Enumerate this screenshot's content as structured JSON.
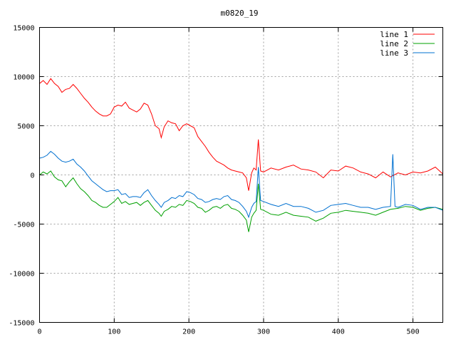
{
  "chart_data": {
    "type": "line",
    "title": "m0820_19",
    "xlabel": "",
    "ylabel": "",
    "xlim": [
      0,
      540
    ],
    "ylim": [
      -15000,
      15000
    ],
    "x_ticks": [
      0,
      100,
      200,
      300,
      400,
      500
    ],
    "y_ticks": [
      -15000,
      -10000,
      -5000,
      0,
      5000,
      10000,
      15000
    ],
    "grid": true,
    "legend_position": "top-right",
    "series": [
      {
        "name": "line 1",
        "color": "#ff0000",
        "points": [
          [
            0,
            9300
          ],
          [
            5,
            9600
          ],
          [
            10,
            9200
          ],
          [
            15,
            9800
          ],
          [
            20,
            9300
          ],
          [
            25,
            9000
          ],
          [
            30,
            8400
          ],
          [
            35,
            8700
          ],
          [
            40,
            8800
          ],
          [
            45,
            9200
          ],
          [
            50,
            8800
          ],
          [
            55,
            8300
          ],
          [
            60,
            7800
          ],
          [
            65,
            7400
          ],
          [
            70,
            6900
          ],
          [
            75,
            6500
          ],
          [
            80,
            6200
          ],
          [
            85,
            6000
          ],
          [
            90,
            6000
          ],
          [
            95,
            6200
          ],
          [
            100,
            6900
          ],
          [
            105,
            7100
          ],
          [
            110,
            7000
          ],
          [
            115,
            7400
          ],
          [
            120,
            6800
          ],
          [
            125,
            6600
          ],
          [
            130,
            6400
          ],
          [
            135,
            6700
          ],
          [
            140,
            7300
          ],
          [
            145,
            7100
          ],
          [
            150,
            6200
          ],
          [
            155,
            5000
          ],
          [
            160,
            4700
          ],
          [
            163,
            3800
          ],
          [
            167,
            4900
          ],
          [
            172,
            5500
          ],
          [
            177,
            5300
          ],
          [
            182,
            5200
          ],
          [
            187,
            4500
          ],
          [
            192,
            5000
          ],
          [
            197,
            5200
          ],
          [
            202,
            5000
          ],
          [
            207,
            4800
          ],
          [
            212,
            3900
          ],
          [
            217,
            3400
          ],
          [
            222,
            2900
          ],
          [
            227,
            2300
          ],
          [
            232,
            1800
          ],
          [
            237,
            1400
          ],
          [
            242,
            1200
          ],
          [
            247,
            1000
          ],
          [
            252,
            700
          ],
          [
            257,
            500
          ],
          [
            262,
            400
          ],
          [
            267,
            300
          ],
          [
            272,
            200
          ],
          [
            277,
            -300
          ],
          [
            280,
            -1600
          ],
          [
            284,
            200
          ],
          [
            287,
            700
          ],
          [
            290,
            500
          ],
          [
            293,
            3600
          ],
          [
            296,
            400
          ],
          [
            300,
            300
          ],
          [
            310,
            700
          ],
          [
            320,
            500
          ],
          [
            330,
            800
          ],
          [
            340,
            1000
          ],
          [
            350,
            600
          ],
          [
            360,
            500
          ],
          [
            370,
            300
          ],
          [
            380,
            -300
          ],
          [
            390,
            500
          ],
          [
            400,
            400
          ],
          [
            410,
            900
          ],
          [
            420,
            700
          ],
          [
            430,
            300
          ],
          [
            440,
            100
          ],
          [
            450,
            -300
          ],
          [
            460,
            300
          ],
          [
            470,
            -200
          ],
          [
            480,
            200
          ],
          [
            490,
            0
          ],
          [
            500,
            300
          ],
          [
            510,
            200
          ],
          [
            520,
            400
          ],
          [
            530,
            800
          ],
          [
            540,
            100
          ]
        ]
      },
      {
        "name": "line 2",
        "color": "#00a000",
        "points": [
          [
            0,
            0
          ],
          [
            5,
            300
          ],
          [
            10,
            100
          ],
          [
            15,
            400
          ],
          [
            20,
            -200
          ],
          [
            25,
            -500
          ],
          [
            30,
            -600
          ],
          [
            35,
            -1200
          ],
          [
            40,
            -700
          ],
          [
            45,
            -300
          ],
          [
            50,
            -900
          ],
          [
            55,
            -1400
          ],
          [
            60,
            -1700
          ],
          [
            65,
            -2100
          ],
          [
            70,
            -2600
          ],
          [
            75,
            -2800
          ],
          [
            80,
            -3100
          ],
          [
            85,
            -3300
          ],
          [
            90,
            -3300
          ],
          [
            95,
            -3000
          ],
          [
            100,
            -2700
          ],
          [
            105,
            -2300
          ],
          [
            110,
            -2900
          ],
          [
            115,
            -2700
          ],
          [
            120,
            -3000
          ],
          [
            125,
            -2900
          ],
          [
            130,
            -2800
          ],
          [
            135,
            -3100
          ],
          [
            140,
            -2800
          ],
          [
            145,
            -2600
          ],
          [
            150,
            -3100
          ],
          [
            155,
            -3600
          ],
          [
            160,
            -3900
          ],
          [
            163,
            -4200
          ],
          [
            167,
            -3700
          ],
          [
            172,
            -3500
          ],
          [
            177,
            -3200
          ],
          [
            182,
            -3300
          ],
          [
            187,
            -3000
          ],
          [
            192,
            -3100
          ],
          [
            197,
            -2600
          ],
          [
            202,
            -2700
          ],
          [
            207,
            -2900
          ],
          [
            212,
            -3300
          ],
          [
            217,
            -3400
          ],
          [
            222,
            -3800
          ],
          [
            227,
            -3600
          ],
          [
            232,
            -3300
          ],
          [
            237,
            -3200
          ],
          [
            242,
            -3400
          ],
          [
            247,
            -3100
          ],
          [
            252,
            -3000
          ],
          [
            257,
            -3400
          ],
          [
            262,
            -3500
          ],
          [
            267,
            -3700
          ],
          [
            272,
            -4100
          ],
          [
            277,
            -4600
          ],
          [
            280,
            -5800
          ],
          [
            284,
            -4300
          ],
          [
            287,
            -3900
          ],
          [
            290,
            -3600
          ],
          [
            293,
            -900
          ],
          [
            296,
            -3500
          ],
          [
            300,
            -3600
          ],
          [
            310,
            -4000
          ],
          [
            320,
            -4100
          ],
          [
            330,
            -3800
          ],
          [
            340,
            -4100
          ],
          [
            350,
            -4200
          ],
          [
            360,
            -4300
          ],
          [
            370,
            -4700
          ],
          [
            380,
            -4400
          ],
          [
            390,
            -3900
          ],
          [
            400,
            -3800
          ],
          [
            410,
            -3600
          ],
          [
            420,
            -3700
          ],
          [
            430,
            -3800
          ],
          [
            440,
            -3900
          ],
          [
            450,
            -4100
          ],
          [
            460,
            -3800
          ],
          [
            470,
            -3500
          ],
          [
            480,
            -3400
          ],
          [
            490,
            -3200
          ],
          [
            500,
            -3300
          ],
          [
            510,
            -3600
          ],
          [
            520,
            -3400
          ],
          [
            530,
            -3300
          ],
          [
            540,
            -3500
          ]
        ]
      },
      {
        "name": "line 3",
        "color": "#0070d0",
        "points": [
          [
            0,
            1700
          ],
          [
            5,
            1800
          ],
          [
            10,
            2000
          ],
          [
            15,
            2400
          ],
          [
            20,
            2100
          ],
          [
            25,
            1700
          ],
          [
            30,
            1400
          ],
          [
            35,
            1300
          ],
          [
            40,
            1400
          ],
          [
            45,
            1600
          ],
          [
            50,
            1100
          ],
          [
            55,
            800
          ],
          [
            60,
            400
          ],
          [
            65,
            -100
          ],
          [
            70,
            -600
          ],
          [
            75,
            -900
          ],
          [
            80,
            -1200
          ],
          [
            85,
            -1500
          ],
          [
            90,
            -1700
          ],
          [
            95,
            -1600
          ],
          [
            100,
            -1600
          ],
          [
            105,
            -1500
          ],
          [
            110,
            -2000
          ],
          [
            115,
            -1900
          ],
          [
            120,
            -2300
          ],
          [
            125,
            -2200
          ],
          [
            130,
            -2200
          ],
          [
            135,
            -2300
          ],
          [
            140,
            -1800
          ],
          [
            145,
            -1500
          ],
          [
            150,
            -2100
          ],
          [
            155,
            -2600
          ],
          [
            160,
            -3000
          ],
          [
            163,
            -3300
          ],
          [
            167,
            -2800
          ],
          [
            172,
            -2600
          ],
          [
            177,
            -2300
          ],
          [
            182,
            -2400
          ],
          [
            187,
            -2100
          ],
          [
            192,
            -2200
          ],
          [
            197,
            -1700
          ],
          [
            202,
            -1800
          ],
          [
            207,
            -2000
          ],
          [
            212,
            -2400
          ],
          [
            217,
            -2500
          ],
          [
            222,
            -2800
          ],
          [
            227,
            -2700
          ],
          [
            232,
            -2500
          ],
          [
            237,
            -2400
          ],
          [
            242,
            -2500
          ],
          [
            247,
            -2200
          ],
          [
            252,
            -2100
          ],
          [
            257,
            -2500
          ],
          [
            262,
            -2600
          ],
          [
            267,
            -2800
          ],
          [
            272,
            -3200
          ],
          [
            277,
            -3700
          ],
          [
            280,
            -4300
          ],
          [
            284,
            -3300
          ],
          [
            287,
            -2900
          ],
          [
            290,
            -2700
          ],
          [
            293,
            800
          ],
          [
            296,
            -2600
          ],
          [
            300,
            -2700
          ],
          [
            310,
            -3000
          ],
          [
            320,
            -3200
          ],
          [
            330,
            -2900
          ],
          [
            340,
            -3200
          ],
          [
            350,
            -3200
          ],
          [
            360,
            -3400
          ],
          [
            370,
            -3800
          ],
          [
            380,
            -3600
          ],
          [
            390,
            -3100
          ],
          [
            400,
            -3000
          ],
          [
            410,
            -2900
          ],
          [
            420,
            -3100
          ],
          [
            430,
            -3300
          ],
          [
            440,
            -3300
          ],
          [
            450,
            -3500
          ],
          [
            460,
            -3300
          ],
          [
            470,
            -3200
          ],
          [
            473,
            2100
          ],
          [
            476,
            -3200
          ],
          [
            480,
            -3300
          ],
          [
            490,
            -3000
          ],
          [
            500,
            -3100
          ],
          [
            510,
            -3500
          ],
          [
            520,
            -3300
          ],
          [
            530,
            -3300
          ],
          [
            540,
            -3600
          ]
        ]
      }
    ]
  }
}
